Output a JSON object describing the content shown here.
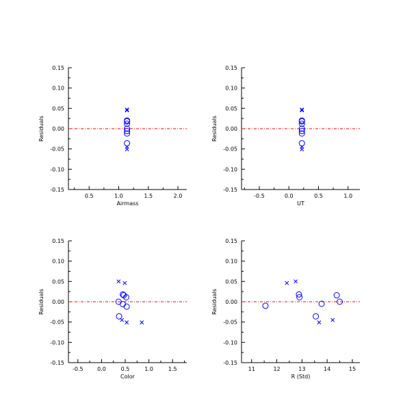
{
  "colors": {
    "data": "#0000ff",
    "zero_line": "#ff0000",
    "axis": "#000000"
  },
  "chart_data": [
    {
      "type": "scatter",
      "title": "",
      "xlabel": "Airmass",
      "ylabel": "Residuals",
      "xlim": [
        0.15,
        2.15
      ],
      "ylim": [
        -0.15,
        0.15
      ],
      "xticks": [
        0.5,
        1.0,
        1.5,
        2.0
      ],
      "xtick_labels": [
        "0.5",
        "1.0",
        "1.5",
        "2.0"
      ],
      "yticks": [
        -0.15,
        -0.1,
        -0.05,
        0.0,
        0.05,
        0.1,
        0.15
      ],
      "ytick_labels": [
        "-0.15",
        "-0.10",
        "-0.05",
        "0.00",
        "0.05",
        "0.10",
        "0.15"
      ],
      "zero_line": 0,
      "series": [
        {
          "marker": "circle",
          "x": [
            1.14,
            1.14,
            1.14,
            1.14,
            1.14,
            1.14,
            1.14
          ],
          "y": [
            0.018,
            0.012,
            0.0,
            -0.006,
            -0.012,
            -0.036,
            0.02
          ]
        },
        {
          "marker": "x",
          "x": [
            1.14,
            1.14,
            1.14,
            1.14
          ],
          "y": [
            0.047,
            0.045,
            -0.045,
            -0.051
          ]
        }
      ]
    },
    {
      "type": "scatter",
      "title": "",
      "xlabel": "UT",
      "ylabel": "Residuals",
      "xlim": [
        -0.8,
        1.2
      ],
      "ylim": [
        -0.15,
        0.15
      ],
      "xticks": [
        -0.5,
        0.0,
        0.5,
        1.0
      ],
      "xtick_labels": [
        "-0.5",
        "0.0",
        "0.5",
        "1.0"
      ],
      "yticks": [
        -0.15,
        -0.1,
        -0.05,
        0.0,
        0.05,
        0.1,
        0.15
      ],
      "ytick_labels": [
        "-0.15",
        "-0.10",
        "-0.05",
        "0.00",
        "0.05",
        "0.10",
        "0.15"
      ],
      "zero_line": 0,
      "series": [
        {
          "marker": "circle",
          "x": [
            0.22,
            0.22,
            0.22,
            0.22,
            0.22,
            0.22,
            0.22
          ],
          "y": [
            0.018,
            0.012,
            0.0,
            -0.006,
            -0.012,
            -0.036,
            0.02
          ]
        },
        {
          "marker": "x",
          "x": [
            0.22,
            0.22,
            0.22,
            0.22
          ],
          "y": [
            0.047,
            0.045,
            -0.045,
            -0.051
          ]
        }
      ]
    },
    {
      "type": "scatter",
      "title": "",
      "xlabel": "Color",
      "ylabel": "Residuals",
      "xlim": [
        -0.7,
        1.8
      ],
      "ylim": [
        -0.15,
        0.15
      ],
      "xticks": [
        -0.5,
        0.0,
        0.5,
        1.0,
        1.5
      ],
      "xtick_labels": [
        "-0.5",
        "0.0",
        "0.5",
        "1.0",
        "1.5"
      ],
      "yticks": [
        -0.15,
        -0.1,
        -0.05,
        0.0,
        0.05,
        0.1,
        0.15
      ],
      "ytick_labels": [
        "-0.15",
        "-0.10",
        "-0.05",
        "0.00",
        "0.05",
        "0.10",
        "0.15"
      ],
      "zero_line": 0,
      "series": [
        {
          "marker": "circle",
          "x": [
            0.45,
            0.47,
            0.52,
            0.36,
            0.45,
            0.53,
            0.37
          ],
          "y": [
            0.018,
            0.016,
            0.011,
            0.0,
            -0.006,
            -0.012,
            -0.036
          ]
        },
        {
          "marker": "x",
          "x": [
            0.36,
            0.49,
            0.43,
            0.53,
            0.85
          ],
          "y": [
            0.05,
            0.046,
            -0.045,
            -0.051,
            -0.051
          ]
        }
      ]
    },
    {
      "type": "scatter",
      "title": "",
      "xlabel": "R (Std)",
      "ylabel": "Residuals",
      "xlim": [
        10.6,
        15.3
      ],
      "ylim": [
        -0.15,
        0.15
      ],
      "xticks": [
        11,
        12,
        13,
        14,
        15
      ],
      "xtick_labels": [
        "11",
        "12",
        "13",
        "14",
        "15"
      ],
      "yticks": [
        -0.15,
        -0.1,
        -0.05,
        0.0,
        0.05,
        0.1,
        0.15
      ],
      "ytick_labels": [
        "-0.15",
        "-0.10",
        "-0.05",
        "0.00",
        "0.05",
        "0.10",
        "0.15"
      ],
      "zero_line": 0,
      "series": [
        {
          "marker": "circle",
          "x": [
            11.55,
            12.88,
            12.9,
            13.55,
            13.78,
            14.38,
            14.5
          ],
          "y": [
            -0.01,
            0.018,
            0.011,
            -0.036,
            -0.005,
            0.016,
            0.0
          ]
        },
        {
          "marker": "x",
          "x": [
            12.4,
            12.75,
            13.68,
            14.22
          ],
          "y": [
            0.046,
            0.05,
            -0.051,
            -0.045
          ]
        }
      ]
    }
  ]
}
